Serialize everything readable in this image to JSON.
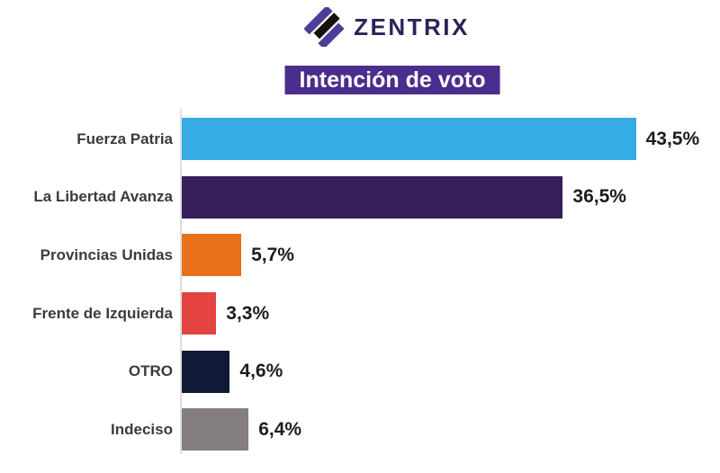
{
  "brand": {
    "name": "ZENTRIX",
    "logo_icon": "zentrix-diamond-icon",
    "text_color": "#2B2359",
    "logo_purple": "#4C3E97",
    "logo_black": "#15120F"
  },
  "title": {
    "text": "Intención de voto",
    "bg": "#4B2D8D",
    "color": "#FFFFFF"
  },
  "chart_data": {
    "type": "bar",
    "orientation": "horizontal",
    "title": "Intención de voto",
    "categories": [
      "Fuerza Patria",
      "La Libertad Avanza",
      "Provincias Unidas",
      "Frente de Izquierda",
      "OTRO",
      "Indeciso"
    ],
    "values": [
      43.5,
      36.5,
      5.7,
      3.3,
      4.6,
      6.4
    ],
    "value_labels": [
      "43,5%",
      "36,5%",
      "5,7%",
      "3,3%",
      "4,6%",
      "6,4%"
    ],
    "colors": [
      "#35ACE3",
      "#381D5B",
      "#E8711B",
      "#E34441",
      "#0F1B36",
      "#847E7E"
    ],
    "xlabel": "",
    "ylabel": "",
    "xlim": [
      0,
      45
    ],
    "grid": false,
    "legend": false,
    "axis_line_color": "#DEDEDE"
  }
}
